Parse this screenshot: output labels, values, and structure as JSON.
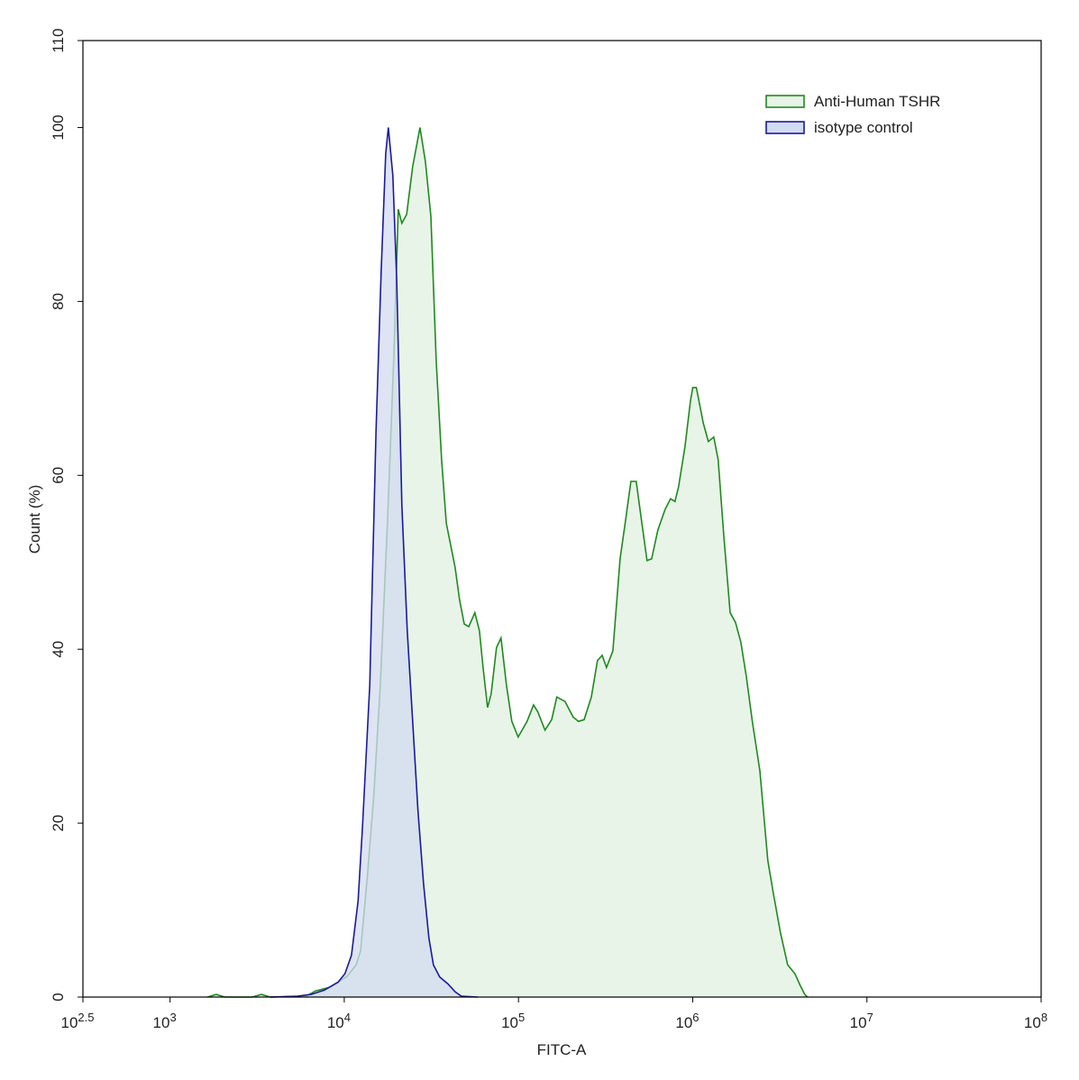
{
  "chart_data": {
    "type": "histogram-overlay",
    "x_label": "FITC-A",
    "y_label": "Count  (%)",
    "x_log": true,
    "xlim": [
      316.227766,
      100000000
    ],
    "xticks": [
      {
        "value": 316.227766,
        "label": "10",
        "exponent": "2.5"
      },
      {
        "value": 1000,
        "label": "10",
        "exponent": "3"
      },
      {
        "value": 10000,
        "label": "10",
        "exponent": "4"
      },
      {
        "value": 100000,
        "label": "10",
        "exponent": "5"
      },
      {
        "value": 1000000,
        "label": "10",
        "exponent": "6"
      },
      {
        "value": 10000000,
        "label": "10",
        "exponent": "7"
      },
      {
        "value": 100000000,
        "label": "10",
        "exponent": "8"
      }
    ],
    "ylim": [
      0,
      110
    ],
    "yticks": [
      0,
      20,
      40,
      60,
      80,
      100,
      110
    ],
    "legend_position": "upper right",
    "series": [
      {
        "name": "Anti-Human TSHR",
        "color": "#1e8a1e",
        "fill": "#e6f3e6",
        "x": [
          1640,
          1840,
          2070,
          2960,
          3340,
          3770,
          6070,
          6830,
          8170,
          9200,
          10400,
          11700,
          12400,
          13600,
          14800,
          16100,
          17700,
          19300,
          20400,
          21400,
          22800,
          24700,
          27200,
          29200,
          31400,
          33700,
          36200,
          38500,
          43300,
          45900,
          48800,
          51800,
          56200,
          59700,
          62600,
          66500,
          69700,
          74800,
          79400,
          85300,
          91600,
          99500,
          112000,
          122000,
          129000,
          142000,
          155000,
          166000,
          185000,
          206000,
          221000,
          238000,
          262000,
          284000,
          302000,
          320000,
          348000,
          383000,
          411000,
          442000,
          474000,
          509000,
          547000,
          581000,
          631000,
          695000,
          746000,
          791000,
          830000,
          903000,
          970000,
          1000000,
          1050000,
          1150000,
          1230000,
          1320000,
          1400000,
          1510000,
          1640000,
          1760000,
          1890000,
          2030000,
          2200000,
          2430000,
          2700000,
          2900000,
          3190000,
          3510000,
          3860000,
          4150000,
          4400000,
          4560000
        ],
        "values": [
          0,
          0.3,
          0,
          0,
          0.3,
          0,
          0.1,
          0.7,
          1.1,
          1.7,
          2.4,
          3.7,
          5.3,
          14.1,
          23.4,
          35.9,
          54.5,
          74.2,
          90.6,
          89.0,
          90.0,
          95.5,
          100,
          96.1,
          89.8,
          73.2,
          61.8,
          54.5,
          49.4,
          45.7,
          42.9,
          42.6,
          44.2,
          42.1,
          37.9,
          33.3,
          34.9,
          40.2,
          41.3,
          35.9,
          31.7,
          29.9,
          31.7,
          33.6,
          32.8,
          30.7,
          31.9,
          34.5,
          34.0,
          32.2,
          31.7,
          31.9,
          34.5,
          38.7,
          39.3,
          37.9,
          39.8,
          50.4,
          54.7,
          59.3,
          59.3,
          54.7,
          50.2,
          50.4,
          53.7,
          56.1,
          57.3,
          57.0,
          58.7,
          63.3,
          68.5,
          70.1,
          70.1,
          66.0,
          63.9,
          64.4,
          61.8,
          53.0,
          44.2,
          43.1,
          40.8,
          36.9,
          31.7,
          26.0,
          15.7,
          12.0,
          7.4,
          3.7,
          2.7,
          1.3,
          0.3,
          0
        ]
      },
      {
        "name": "isotype control",
        "color": "#1a1a9e",
        "fill": "#d3dbf0",
        "x": [
          3770,
          5380,
          6440,
          7690,
          9200,
          10100,
          11000,
          12000,
          12700,
          14000,
          15200,
          16300,
          17300,
          17900,
          19000,
          20000,
          21400,
          23000,
          24700,
          26500,
          28500,
          30600,
          32500,
          35300,
          39400,
          43300,
          47000,
          58300
        ],
        "values": [
          0,
          0.1,
          0.3,
          0.8,
          1.7,
          2.7,
          4.8,
          11.0,
          19.3,
          35.9,
          64.9,
          83.6,
          97.0,
          100,
          94.5,
          82.5,
          56.6,
          42.1,
          31.7,
          21.4,
          13.1,
          6.8,
          3.7,
          2.3,
          1.5,
          0.6,
          0.1,
          0
        ]
      }
    ]
  }
}
